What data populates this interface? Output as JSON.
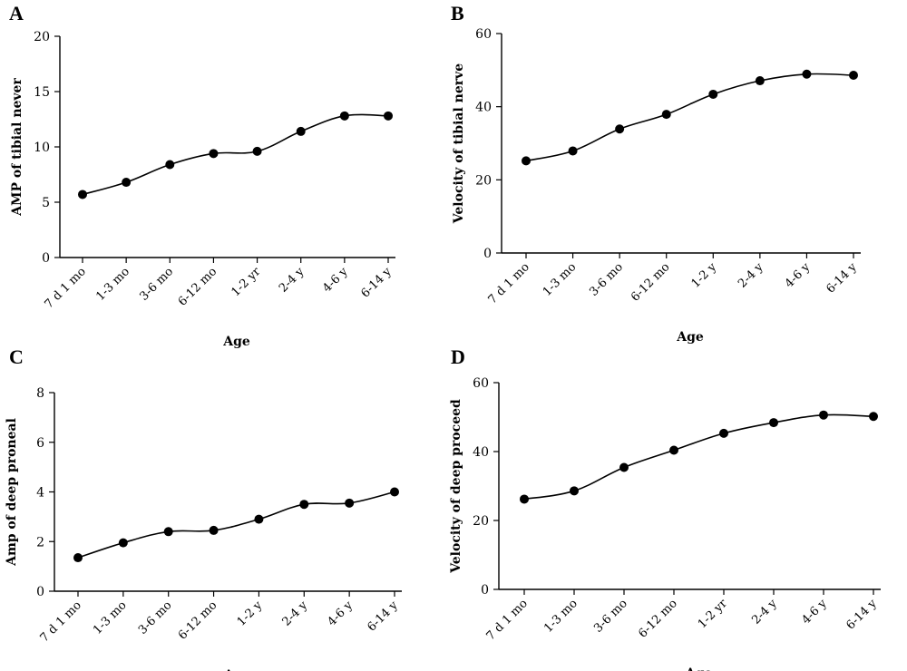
{
  "chart_data": [
    {
      "panel": "A",
      "type": "line",
      "categories": [
        "7 d 1 mo",
        "1-3 mo",
        "3-6 mo",
        "6-12 mo",
        "1-2 yr",
        "2-4 y",
        "4-6 y",
        "6-14 y"
      ],
      "values": [
        5.7,
        6.8,
        8.4,
        9.4,
        9.6,
        11.4,
        12.8,
        12.8
      ],
      "xlabel": "Age",
      "ylabel": "AMP of tibial never",
      "ylim": [
        0,
        20
      ],
      "yticks": [
        0,
        5,
        10,
        15,
        20
      ]
    },
    {
      "panel": "B",
      "type": "line",
      "categories": [
        "7 d 1 mo",
        "1-3 mo",
        "3-6 mo",
        "6-12 mo",
        "1-2 y",
        "2-4 y",
        "4-6 y",
        "6-14 y"
      ],
      "values": [
        25.2,
        27.9,
        33.9,
        37.9,
        43.4,
        47.1,
        48.9,
        48.6
      ],
      "xlabel": "Age",
      "ylabel": "Velocity of tibial nerve",
      "ylim": [
        0,
        60
      ],
      "yticks": [
        0,
        20,
        40,
        60
      ]
    },
    {
      "panel": "C",
      "type": "line",
      "categories": [
        "7 d 1 mo",
        "1-3 mo",
        "3-6 mo",
        "6-12 mo",
        "1-2 y",
        "2-4 y",
        "4-6 y",
        "6-14 y"
      ],
      "values": [
        1.35,
        1.95,
        2.4,
        2.45,
        2.9,
        3.5,
        3.55,
        4.0
      ],
      "xlabel": "Age",
      "ylabel": "Amp of deep proneal",
      "ylim": [
        0,
        8
      ],
      "yticks": [
        0,
        2,
        4,
        6,
        8
      ]
    },
    {
      "panel": "D",
      "type": "line",
      "categories": [
        "7 d 1 mo",
        "1-3 mo",
        "3-6 mo",
        "6-12 mo",
        "1-2 yr",
        "2-4 y",
        "4-6 y",
        "6-14 y"
      ],
      "values": [
        26.2,
        28.6,
        35.4,
        40.4,
        45.3,
        48.4,
        50.6,
        50.2
      ],
      "xlabel": "Age",
      "ylabel": "Velocity of deep proceed",
      "ylim": [
        0,
        60
      ],
      "yticks": [
        0,
        20,
        40,
        60
      ]
    }
  ]
}
